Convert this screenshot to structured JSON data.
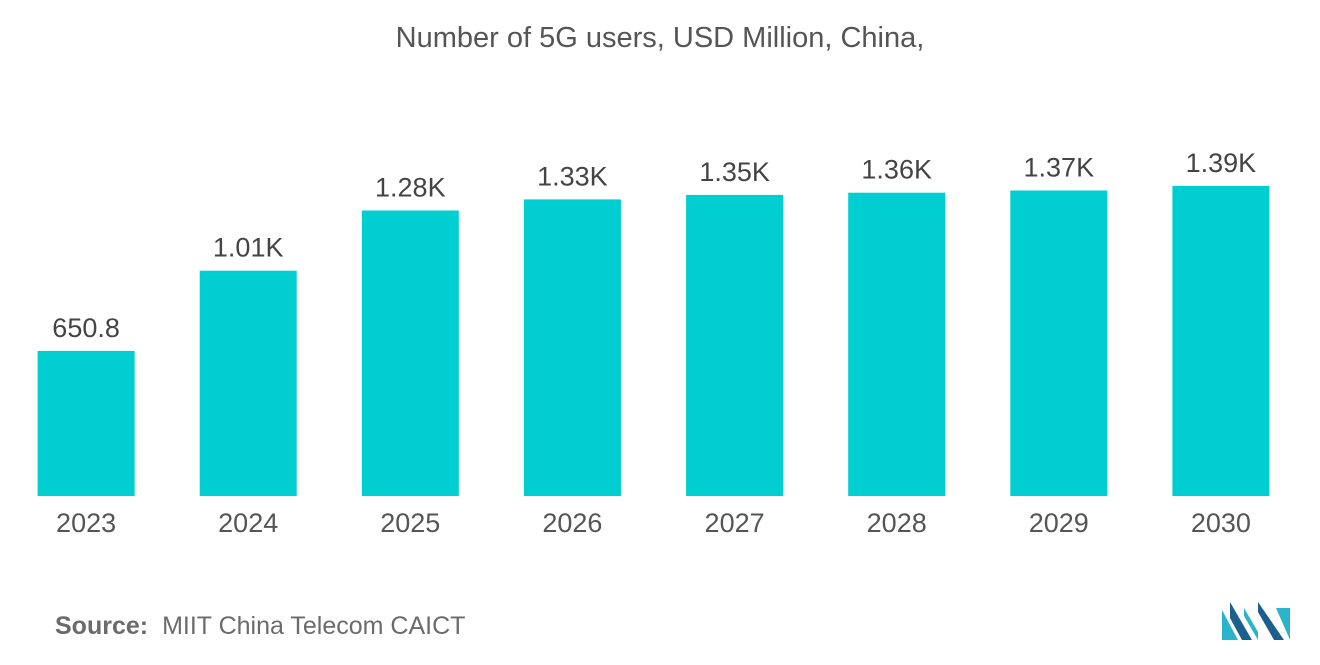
{
  "chart_data": {
    "type": "bar",
    "title": "Number of 5G users, USD Million, China,",
    "categories": [
      "2023",
      "2024",
      "2025",
      "2026",
      "2027",
      "2028",
      "2029",
      "2030"
    ],
    "values": [
      650.8,
      1010,
      1280,
      1330,
      1350,
      1360,
      1370,
      1390
    ],
    "value_labels": [
      "650.8",
      "1.01K",
      "1.28K",
      "1.33K",
      "1.35K",
      "1.36K",
      "1.37K",
      "1.39K"
    ],
    "xlabel": "",
    "ylabel": "",
    "ylim": [
      0,
      1390
    ],
    "grid": false,
    "legend": "none",
    "bar_color": "#00CED1"
  },
  "source": {
    "label": "Source:",
    "text": "MIIT China Telecom CAICT"
  },
  "logo": {
    "icon": "mordor-intelligence-logo-icon",
    "colors": [
      "#2BB3C9",
      "#1C5F8C"
    ]
  }
}
